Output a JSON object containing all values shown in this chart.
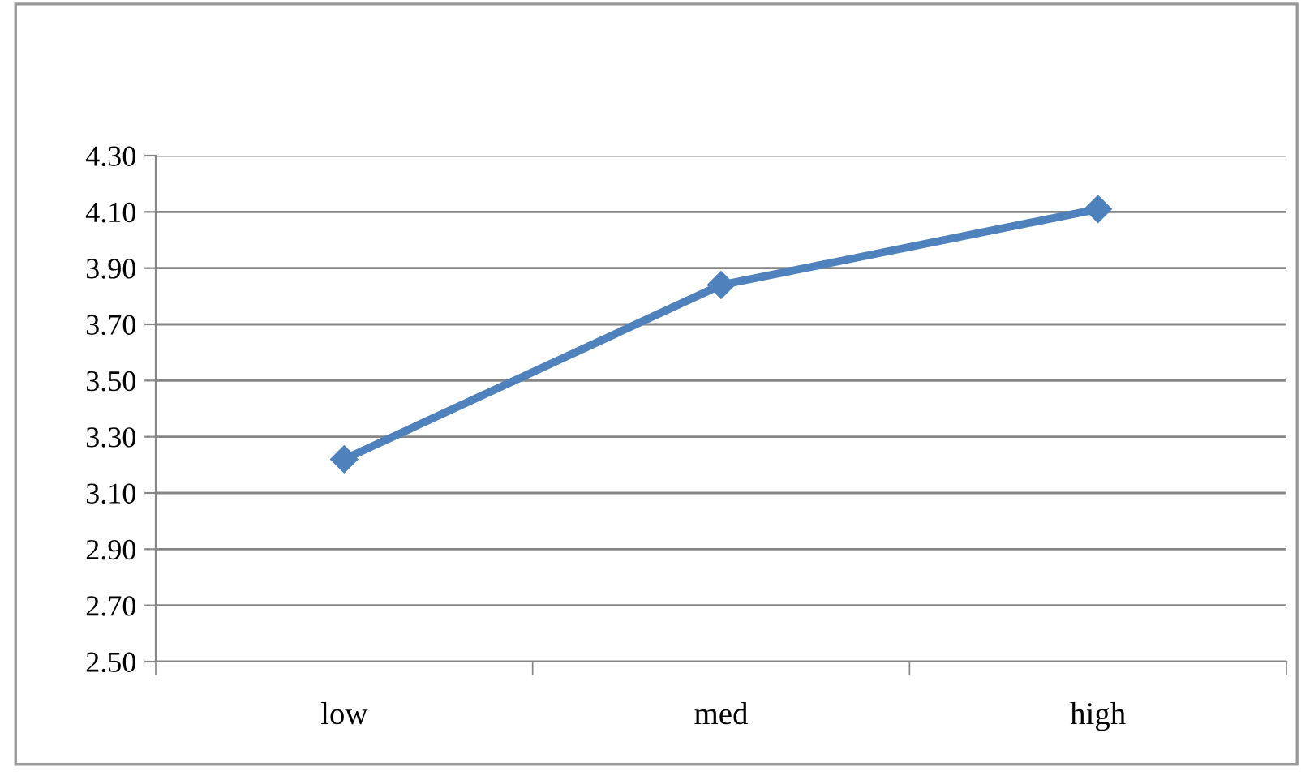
{
  "chart_data": {
    "type": "line",
    "categories": [
      "low",
      "med",
      "high"
    ],
    "series": [
      {
        "color": "#4f81bd",
        "values": [
          3.22,
          3.84,
          4.11
        ]
      }
    ],
    "ylim": [
      2.5,
      4.3
    ],
    "yticks": [
      {
        "value": 2.5,
        "label": "2.50"
      },
      {
        "value": 2.7,
        "label": "2.70"
      },
      {
        "value": 2.9,
        "label": "2.90"
      },
      {
        "value": 3.1,
        "label": "3.10"
      },
      {
        "value": 3.3,
        "label": "3.30"
      },
      {
        "value": 3.5,
        "label": "3.50"
      },
      {
        "value": 3.7,
        "label": "3.70"
      },
      {
        "value": 3.9,
        "label": "3.90"
      },
      {
        "value": 4.1,
        "label": "4.10"
      },
      {
        "value": 4.3,
        "label": "4.30"
      }
    ],
    "grid": "y",
    "marker": "diamond",
    "line_style": "solid",
    "legend": false
  }
}
